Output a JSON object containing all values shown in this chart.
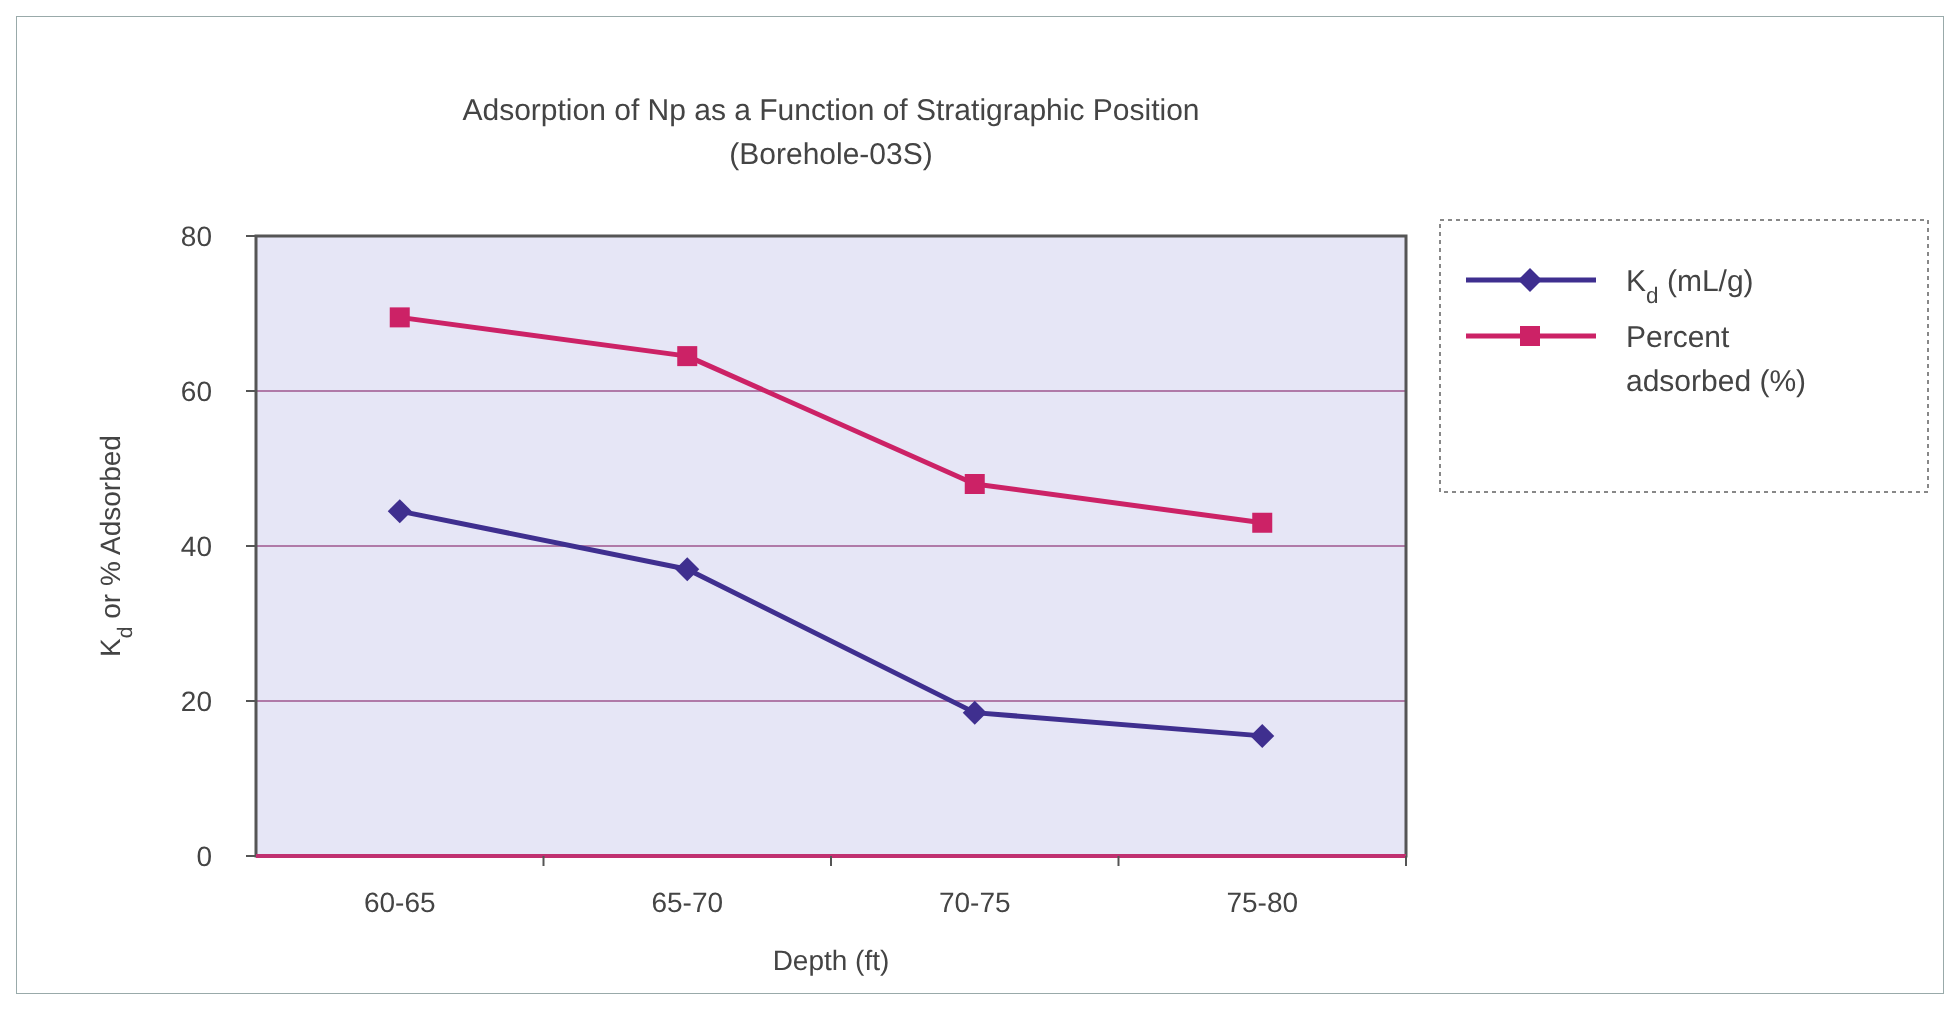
{
  "chart_data": {
    "type": "line",
    "title": "Adsorption of Np as a Function of Stratigraphic Position",
    "subtitle": "(Borehole-03S)",
    "xlabel": "Depth (ft)",
    "ylabel": "K$_{d}$ or % Adsorbed",
    "categories": [
      "60-65",
      "65-70",
      "70-75",
      "75-80"
    ],
    "series": [
      {
        "name": "K$_{d}$ (mL/g)",
        "color": "#3f2f8f",
        "values": [
          44.5,
          37,
          18.5,
          15.5
        ],
        "marker": "diamond"
      },
      {
        "name": "Percent adsorbed (%)",
        "color": "#cc2266",
        "values": [
          69.5,
          64.5,
          48,
          43
        ],
        "marker": "square"
      }
    ],
    "ylim": [
      0,
      80
    ],
    "yticks": [
      0,
      20,
      40,
      60,
      80
    ],
    "grid": "y",
    "legend": "right",
    "line_style": "solid"
  }
}
